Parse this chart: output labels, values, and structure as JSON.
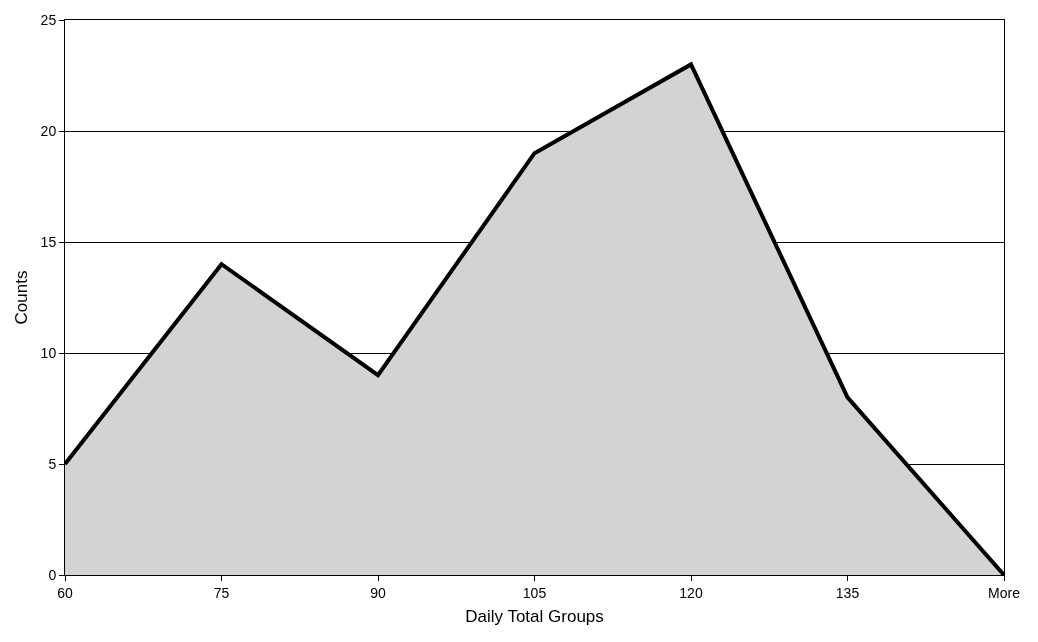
{
  "chart_data": {
    "type": "area",
    "xlabel": "Daily Total Groups",
    "ylabel": "Counts",
    "categories": [
      "60",
      "75",
      "90",
      "105",
      "120",
      "135",
      "More"
    ],
    "series": [
      {
        "color": "#d3d3d3",
        "values": [
          5,
          14,
          9,
          19,
          23,
          8,
          0
        ]
      }
    ],
    "ylim": [
      0,
      25
    ],
    "yticks": [
      0,
      5,
      10,
      15,
      20,
      25
    ],
    "grid": "y"
  }
}
